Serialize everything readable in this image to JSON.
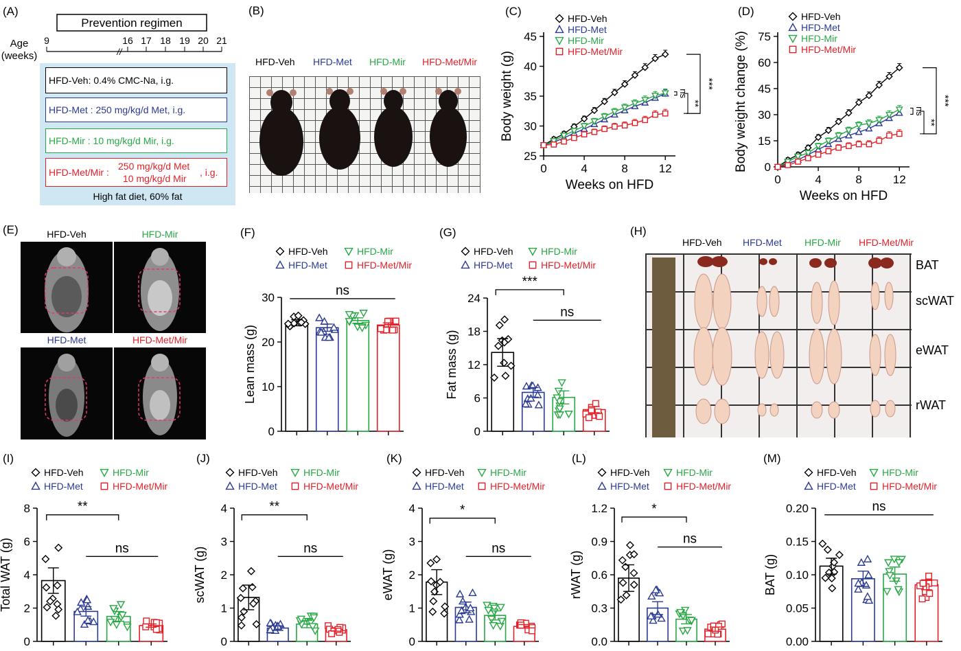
{
  "colors": {
    "veh": "#000000",
    "met": "#2a3a93",
    "mir": "#27a844",
    "metmir": "#e32028",
    "regimen_bg": "#cfe7f3"
  },
  "panelA": {
    "label": "(A)",
    "regimen_title": "Prevention regimen",
    "age_label_1": "Age",
    "age_label_2": "(weeks)",
    "ticks": [
      "9",
      "16",
      "17",
      "18",
      "19",
      "20",
      "21"
    ],
    "break_mark": "//",
    "boxes": {
      "veh": "HFD-Veh: 0.4% CMC-Na, i.g.",
      "met": "HFD-Met : 250 mg/kg/d Met, i.g.",
      "mir": "HFD-Mir : 10 mg/kg/d Mir, i.g.",
      "metmir_name": "HFD-Met/Mir :",
      "metmir_line1": "250 mg/kg/d Met",
      "metmir_line2": "10  mg/kg/d Mir",
      "metmir_route": ", i.g."
    },
    "diet": "High fat diet, 60% fat"
  },
  "panelB": {
    "label": "(B)",
    "groups": [
      "HFD-Veh",
      "HFD-Met",
      "HFD-Mir",
      "HFD-Met/Mir"
    ]
  },
  "panelE": {
    "label": "(E)",
    "groups": [
      "HFD-Veh",
      "HFD-Mir",
      "HFD-Met",
      "HFD-Met/Mir"
    ]
  },
  "panelH": {
    "label": "(H)",
    "groups": [
      "HFD-Veh",
      "HFD-Met",
      "HFD-Mir",
      "HFD-Met/Mir"
    ],
    "tissues": [
      "BAT",
      "scWAT",
      "eWAT",
      "rWAT"
    ]
  },
  "chart_data": [
    {
      "panel": "(C)",
      "type": "line",
      "xlabel": "Weeks on HFD",
      "ylabel": "Body weight (g)",
      "xlim": [
        0,
        13
      ],
      "ylim": [
        25,
        45
      ],
      "xticks": [
        "0",
        "4",
        "8",
        "12"
      ],
      "yticks": [
        "25",
        "30",
        "35",
        "40",
        "45"
      ],
      "x": [
        0,
        1,
        2,
        3,
        4,
        5,
        6,
        7,
        8,
        9,
        10,
        11,
        12
      ],
      "series": [
        {
          "name": "HFD-Veh",
          "values": [
            26.8,
            27.8,
            28.7,
            29.9,
            31.2,
            32.6,
            34.1,
            35.6,
            37.0,
            38.5,
            39.8,
            41.3,
            42.0
          ]
        },
        {
          "name": "HFD-Met",
          "values": [
            26.8,
            27.3,
            28.0,
            28.8,
            29.5,
            30.3,
            31.1,
            31.9,
            32.6,
            33.3,
            33.9,
            34.7,
            35.4
          ]
        },
        {
          "name": "HFD-Mir",
          "values": [
            26.8,
            27.5,
            28.4,
            29.2,
            30.0,
            30.8,
            31.6,
            32.4,
            33.1,
            33.8,
            34.4,
            35.1,
            35.5
          ]
        },
        {
          "name": "HFD-Met/Mir",
          "values": [
            26.8,
            26.9,
            27.4,
            28.0,
            28.6,
            29.0,
            29.5,
            29.9,
            30.1,
            30.5,
            31.0,
            31.9,
            32.1
          ]
        }
      ],
      "annotations": [
        "***",
        "**",
        "ns"
      ]
    },
    {
      "panel": "(D)",
      "type": "line",
      "xlabel": "Weeks on HFD",
      "ylabel": "Body weight change (%)",
      "xlim": [
        0,
        13
      ],
      "ylim": [
        0,
        75
      ],
      "xticks": [
        "0",
        "4",
        "8",
        "12"
      ],
      "yticks": [
        "0",
        "15",
        "30",
        "45",
        "60",
        "75"
      ],
      "x": [
        0,
        1,
        2,
        3,
        4,
        5,
        6,
        7,
        8,
        9,
        10,
        11,
        12
      ],
      "series": [
        {
          "name": "HFD-Veh",
          "values": [
            0,
            4,
            7,
            11,
            17,
            21,
            26,
            31,
            37,
            41,
            47,
            52,
            57
          ]
        },
        {
          "name": "HFD-Met",
          "values": [
            0,
            2,
            4,
            7,
            10,
            13,
            16,
            18,
            20,
            22,
            25,
            28,
            31
          ]
        },
        {
          "name": "HFD-Mir",
          "values": [
            0,
            3,
            6,
            8,
            12,
            15,
            18,
            21,
            24,
            25,
            27,
            30,
            33
          ]
        },
        {
          "name": "HFD-Met/Mir",
          "values": [
            0,
            1,
            3,
            5,
            7,
            9,
            11,
            12,
            13,
            13,
            15,
            18,
            19
          ]
        }
      ],
      "annotations": [
        "***",
        "**",
        "ns"
      ]
    },
    {
      "panel": "(F)",
      "type": "bar",
      "ylabel": "Lean mass (g)",
      "ylim": [
        0,
        30
      ],
      "yticks": [
        "0",
        "10",
        "20",
        "30"
      ],
      "categories": [
        "HFD-Veh",
        "HFD-Met",
        "HFD-Mir",
        "HFD-Met/Mir"
      ],
      "values": [
        24.3,
        23.2,
        24.8,
        23.8
      ],
      "annotations": [
        "ns"
      ]
    },
    {
      "panel": "(G)",
      "type": "bar",
      "ylabel": "Fat mass (g)",
      "ylim": [
        0,
        24
      ],
      "yticks": [
        "0",
        "6",
        "12",
        "18",
        "24"
      ],
      "categories": [
        "HFD-Veh",
        "HFD-Met",
        "HFD-Mir",
        "HFD-Met/Mir"
      ],
      "values": [
        14.2,
        7.0,
        6.1,
        3.9
      ],
      "annotations": [
        "***",
        "ns"
      ]
    },
    {
      "panel": "(I)",
      "type": "bar",
      "ylabel": "Total WAT (g)",
      "ylim": [
        0,
        8
      ],
      "yticks": [
        "0",
        "2",
        "4",
        "6",
        "8"
      ],
      "categories": [
        "HFD-Veh",
        "HFD-Met",
        "HFD-Mir",
        "HFD-Met/Mir"
      ],
      "values": [
        3.65,
        1.8,
        1.5,
        0.95
      ],
      "annotations": [
        "**",
        "ns"
      ]
    },
    {
      "panel": "(J)",
      "type": "bar",
      "ylabel": "scWAT (g)",
      "ylim": [
        0,
        4
      ],
      "yticks": [
        "0",
        "1",
        "2",
        "3",
        "4"
      ],
      "categories": [
        "HFD-Veh",
        "HFD-Met",
        "HFD-Mir",
        "HFD-Met/Mir"
      ],
      "values": [
        1.32,
        0.4,
        0.52,
        0.35
      ],
      "annotations": [
        "**",
        "ns"
      ]
    },
    {
      "panel": "(K)",
      "type": "bar",
      "ylabel": "eWAT (g)",
      "ylim": [
        0,
        4
      ],
      "yticks": [
        "0",
        "1",
        "2",
        "3",
        "4"
      ],
      "categories": [
        "HFD-Veh",
        "HFD-Met",
        "HFD-Mir",
        "HFD-Met/Mir"
      ],
      "values": [
        1.78,
        1.02,
        0.78,
        0.45
      ],
      "annotations": [
        "*",
        "ns"
      ]
    },
    {
      "panel": "(L)",
      "type": "bar",
      "ylabel": "rWAT (g)",
      "ylim": [
        0,
        1.2
      ],
      "yticks": [
        "0.0",
        "0.3",
        "0.6",
        "0.9",
        "1.2"
      ],
      "categories": [
        "HFD-Veh",
        "HFD-Met",
        "HFD-Mir",
        "HFD-Met/Mir"
      ],
      "values": [
        0.57,
        0.3,
        0.2,
        0.11
      ],
      "annotations": [
        "*",
        "ns"
      ]
    },
    {
      "panel": "(M)",
      "type": "bar",
      "ylabel": "BAT (g)",
      "ylim": [
        0,
        0.2
      ],
      "yticks": [
        "0.00",
        "0.05",
        "0.10",
        "0.15",
        "0.20"
      ],
      "categories": [
        "HFD-Veh",
        "HFD-Met",
        "HFD-Mir",
        "HFD-Met/Mir"
      ],
      "values": [
        0.113,
        0.094,
        0.101,
        0.085
      ],
      "annotations": [
        "ns"
      ]
    }
  ]
}
